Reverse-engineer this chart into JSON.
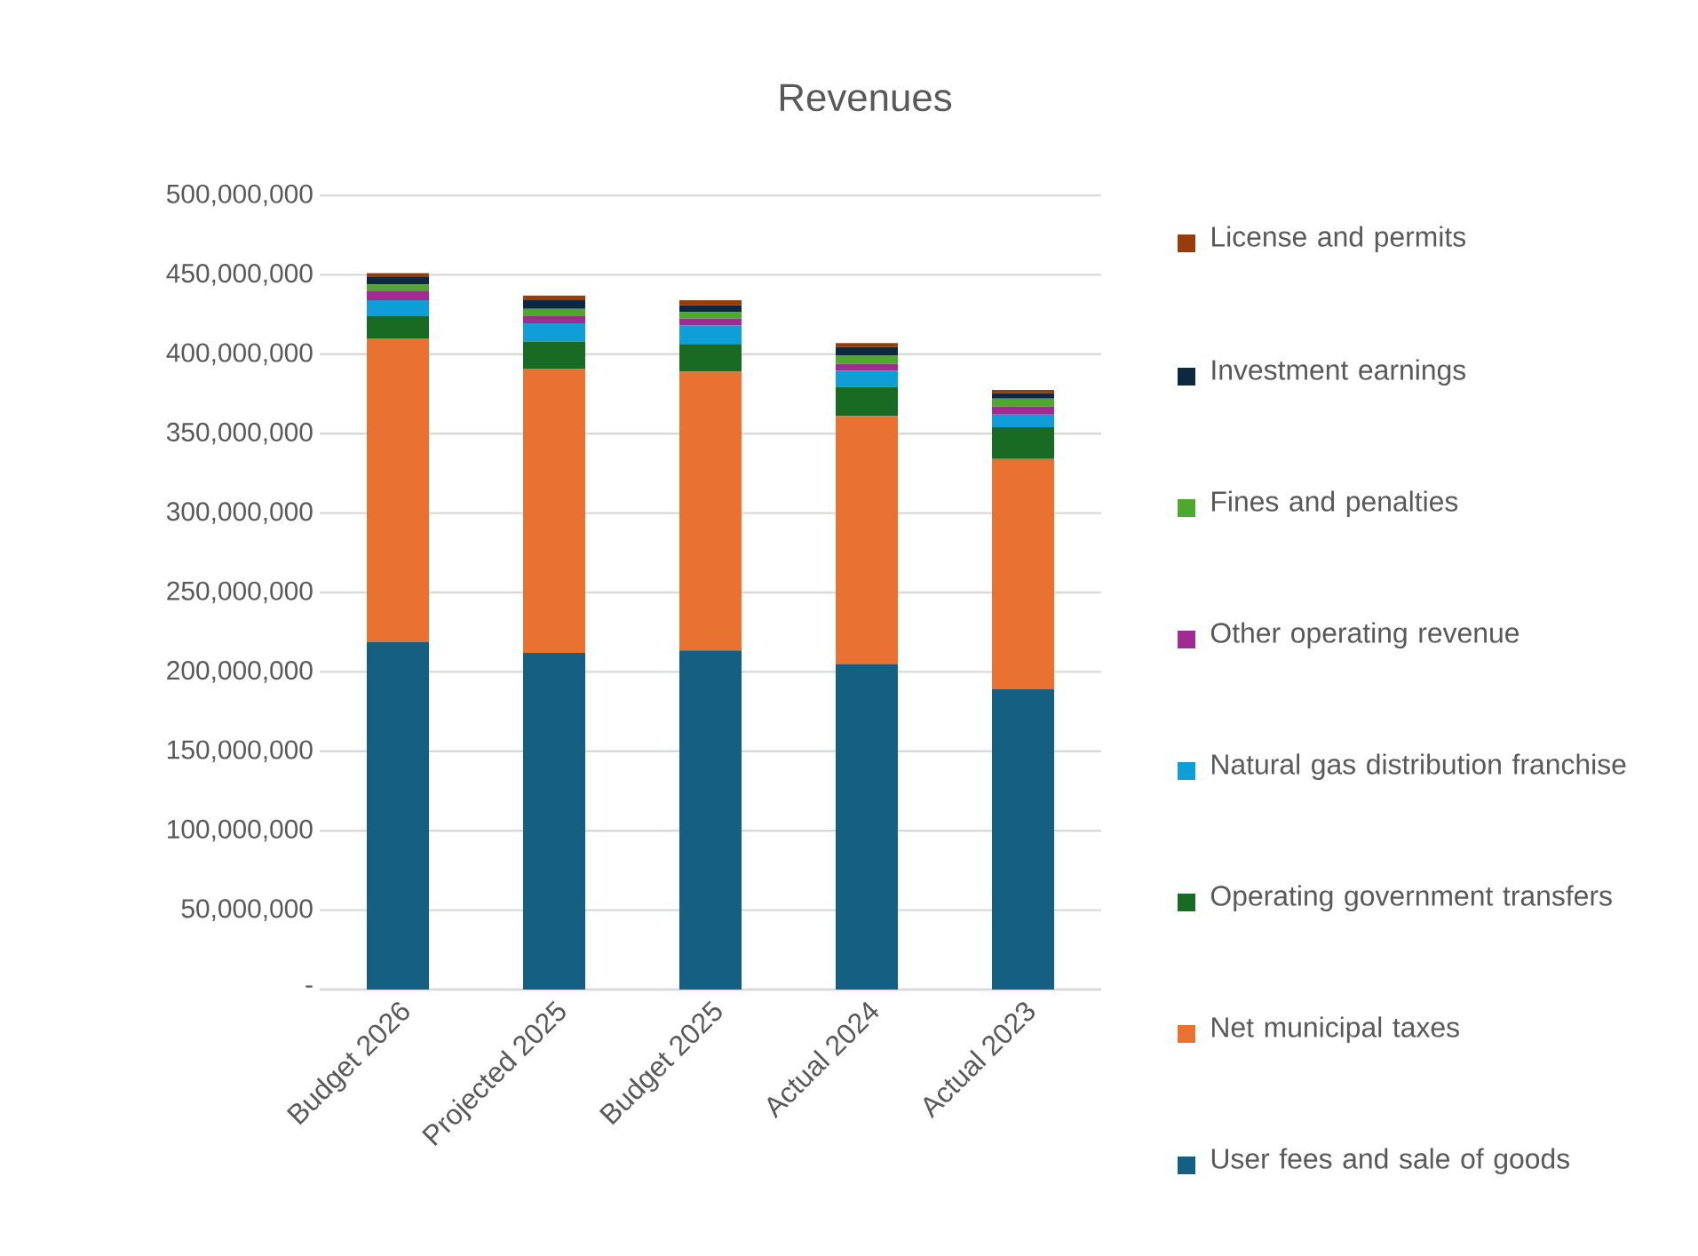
{
  "chart_data": {
    "type": "bar",
    "title": "Revenues",
    "stacked": true,
    "grid": "y",
    "legend": "right",
    "categories": [
      "Budget 2026",
      "Projected 2025",
      "Budget 2025",
      "Actual 2024",
      "Actual 2023"
    ],
    "ylim": [
      0,
      500000000
    ],
    "yticks": [
      {
        "value": 0,
        "label": "-"
      },
      {
        "value": 50000000,
        "label": "50,000,000"
      },
      {
        "value": 100000000,
        "label": "100,000,000"
      },
      {
        "value": 150000000,
        "label": "150,000,000"
      },
      {
        "value": 200000000,
        "label": "200,000,000"
      },
      {
        "value": 250000000,
        "label": "250,000,000"
      },
      {
        "value": 300000000,
        "label": "300,000,000"
      },
      {
        "value": 350000000,
        "label": "350,000,000"
      },
      {
        "value": 400000000,
        "label": "400,000,000"
      },
      {
        "value": 450000000,
        "label": "450,000,000"
      },
      {
        "value": 500000000,
        "label": "500,000,000"
      }
    ],
    "series": [
      {
        "name": "User fees and sale of goods",
        "color": "#156082",
        "values": [
          219000000,
          212000000,
          213500000,
          205000000,
          189000000
        ]
      },
      {
        "name": "Net municipal taxes",
        "color": "#e97132",
        "values": [
          191000000,
          179000000,
          175500000,
          156000000,
          145000000
        ]
      },
      {
        "name": "Operating government transfers",
        "color": "#196b24",
        "values": [
          14000000,
          17000000,
          17500000,
          18500000,
          20000000
        ]
      },
      {
        "name": "Natural gas distribution franchise",
        "color": "#0f9ed5",
        "values": [
          10000000,
          11500000,
          11500000,
          10000000,
          8000000
        ]
      },
      {
        "name": "Other operating revenue",
        "color": "#a02b93",
        "values": [
          6000000,
          4500000,
          4500000,
          4500000,
          5000000
        ]
      },
      {
        "name": "Fines and penalties",
        "color": "#4ea72e",
        "values": [
          4000000,
          4500000,
          4000000,
          5000000,
          5000000
        ]
      },
      {
        "name": "Investment earnings",
        "color": "#0e2841",
        "values": [
          5000000,
          5500000,
          4500000,
          5500000,
          3500000
        ]
      },
      {
        "name": "License and permits",
        "color": "#983c0c",
        "values": [
          2000000,
          3000000,
          3000000,
          2500000,
          2000000
        ]
      }
    ]
  }
}
